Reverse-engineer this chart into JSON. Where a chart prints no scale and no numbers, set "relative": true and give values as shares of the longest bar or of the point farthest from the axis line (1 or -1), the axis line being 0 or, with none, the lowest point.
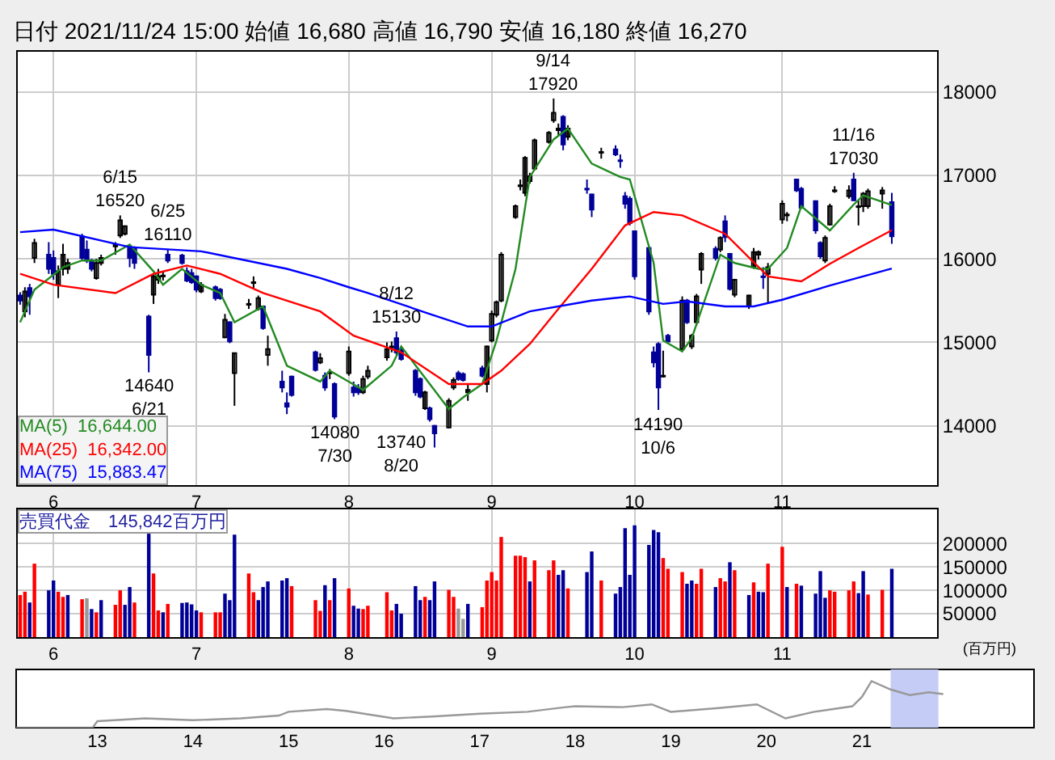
{
  "chart_data": [
    {
      "type": "candlestick",
      "title": "日付 2021/11/24 15:00 始値 16,680 高値 16,790 安値 16,180 終値 16,270",
      "x": [
        "2021-05-25",
        "2021-05-26",
        "2021-05-27",
        "2021-05-28",
        "2021-05-31",
        "2021-06-01",
        "2021-06-02",
        "2021-06-03",
        "2021-06-04",
        "2021-06-07",
        "2021-06-08",
        "2021-06-09",
        "2021-06-10",
        "2021-06-11",
        "2021-06-14",
        "2021-06-15",
        "2021-06-16",
        "2021-06-17",
        "2021-06-18",
        "2021-06-21",
        "2021-06-22",
        "2021-06-23",
        "2021-06-24",
        "2021-06-25",
        "2021-06-28",
        "2021-06-29",
        "2021-06-30",
        "2021-07-01",
        "2021-07-02",
        "2021-07-05",
        "2021-07-06",
        "2021-07-07",
        "2021-07-08",
        "2021-07-09",
        "2021-07-12",
        "2021-07-13",
        "2021-07-14",
        "2021-07-15",
        "2021-07-16",
        "2021-07-19",
        "2021-07-20",
        "2021-07-21",
        "2021-07-26",
        "2021-07-27",
        "2021-07-28",
        "2021-07-29",
        "2021-07-30",
        "2021-08-02",
        "2021-08-03",
        "2021-08-04",
        "2021-08-05",
        "2021-08-06",
        "2021-08-10",
        "2021-08-11",
        "2021-08-12",
        "2021-08-13",
        "2021-08-16",
        "2021-08-17",
        "2021-08-18",
        "2021-08-19",
        "2021-08-20",
        "2021-08-23",
        "2021-08-24",
        "2021-08-25",
        "2021-08-26",
        "2021-08-27",
        "2021-08-30",
        "2021-08-31",
        "2021-09-01",
        "2021-09-02",
        "2021-09-03",
        "2021-09-06",
        "2021-09-07",
        "2021-09-08",
        "2021-09-09",
        "2021-09-10",
        "2021-09-13",
        "2021-09-14",
        "2021-09-15",
        "2021-09-16",
        "2021-09-17",
        "2021-09-21",
        "2021-09-22",
        "2021-09-24",
        "2021-09-27",
        "2021-09-28",
        "2021-09-29",
        "2021-09-30",
        "2021-10-01",
        "2021-10-04",
        "2021-10-05",
        "2021-10-06",
        "2021-10-07",
        "2021-10-08",
        "2021-10-11",
        "2021-10-12",
        "2021-10-13",
        "2021-10-14",
        "2021-10-15",
        "2021-10-18",
        "2021-10-19",
        "2021-10-20",
        "2021-10-21",
        "2021-10-22",
        "2021-10-25",
        "2021-10-26",
        "2021-10-27",
        "2021-10-28",
        "2021-10-29",
        "2021-11-01",
        "2021-11-02",
        "2021-11-04",
        "2021-11-05",
        "2021-11-08",
        "2021-11-09",
        "2021-11-10",
        "2021-11-11",
        "2021-11-12",
        "2021-11-15",
        "2021-11-16",
        "2021-11-17",
        "2021-11-18",
        "2021-11-19",
        "2021-11-22",
        "2021-11-24"
      ],
      "ohlc": [
        [
          15560,
          15600,
          15450,
          15500
        ],
        [
          15370,
          15660,
          15300,
          15610
        ],
        [
          15650,
          15700,
          15330,
          15550
        ],
        [
          16010,
          16240,
          15950,
          16190
        ],
        [
          16050,
          16200,
          15820,
          15880
        ],
        [
          16010,
          16100,
          15750,
          15820
        ],
        [
          15690,
          15920,
          15530,
          15850
        ],
        [
          15880,
          16180,
          15800,
          16050
        ],
        [
          15880,
          16000,
          15820,
          15950
        ],
        [
          16270,
          16300,
          15990,
          16010
        ],
        [
          16110,
          16220,
          15950,
          15980
        ],
        [
          15980,
          16000,
          15850,
          15880
        ],
        [
          15770,
          16000,
          15750,
          15950
        ],
        [
          15950,
          16050,
          15920,
          16010
        ],
        [
          16150,
          16200,
          16050,
          16170
        ],
        [
          16280,
          16520,
          16250,
          16460
        ],
        [
          16300,
          16400,
          16280,
          16390
        ],
        [
          16150,
          16170,
          15900,
          16010
        ],
        [
          16130,
          16150,
          15880,
          15950
        ],
        [
          15310,
          15330,
          14640,
          14850
        ],
        [
          15570,
          15820,
          15460,
          15790
        ],
        [
          15750,
          15880,
          15700,
          15790
        ],
        [
          15790,
          15850,
          15740,
          15800
        ],
        [
          16050,
          16110,
          15950,
          15980
        ],
        [
          16040,
          16060,
          15930,
          15950
        ],
        [
          15850,
          15900,
          15720,
          15740
        ],
        [
          15830,
          15880,
          15700,
          15720
        ],
        [
          15790,
          15800,
          15600,
          15630
        ],
        [
          15610,
          15720,
          15590,
          15690
        ],
        [
          15660,
          15680,
          15500,
          15530
        ],
        [
          15630,
          15650,
          15510,
          15530
        ],
        [
          15060,
          15340,
          15050,
          15270
        ],
        [
          15240,
          15250,
          14990,
          15010
        ],
        [
          14630,
          14870,
          14240,
          14870
        ],
        [
          15450,
          15520,
          15400,
          15460
        ],
        [
          15710,
          15790,
          15650,
          15720
        ],
        [
          15400,
          15560,
          15380,
          15530
        ],
        [
          15430,
          15440,
          15150,
          15170
        ],
        [
          14850,
          15080,
          14720,
          14920
        ],
        [
          14530,
          14660,
          14400,
          14460
        ],
        [
          14270,
          14400,
          14140,
          14230
        ],
        [
          14590,
          14600,
          14350,
          14370
        ],
        [
          14880,
          14900,
          14650,
          14670
        ],
        [
          14760,
          14870,
          14740,
          14810
        ],
        [
          14600,
          14640,
          14420,
          14460
        ],
        [
          14630,
          14680,
          14560,
          14640
        ],
        [
          14500,
          14520,
          14080,
          14110
        ],
        [
          14630,
          14950,
          14600,
          14890
        ],
        [
          14460,
          14530,
          14350,
          14400
        ],
        [
          14450,
          14500,
          14370,
          14400
        ],
        [
          14400,
          14600,
          14380,
          14560
        ],
        [
          14590,
          14720,
          14560,
          14660
        ],
        [
          14820,
          15000,
          14780,
          14920
        ],
        [
          14940,
          15010,
          14880,
          14950
        ],
        [
          15050,
          15130,
          14850,
          14880
        ],
        [
          14920,
          14950,
          14780,
          14800
        ],
        [
          14660,
          14680,
          14360,
          14400
        ],
        [
          14560,
          14580,
          14330,
          14350
        ],
        [
          14210,
          14420,
          14190,
          14400
        ],
        [
          14210,
          14230,
          14050,
          14080
        ],
        [
          14000,
          14010,
          13740,
          13910
        ],
        [
          13980,
          14330,
          13970,
          14300
        ],
        [
          14460,
          14580,
          14430,
          14550
        ],
        [
          14630,
          14660,
          14540,
          14560
        ],
        [
          14620,
          14640,
          14530,
          14550
        ],
        [
          14400,
          14500,
          14300,
          14430
        ],
        [
          14690,
          14720,
          14580,
          14600
        ],
        [
          14500,
          14960,
          14400,
          14950
        ],
        [
          15020,
          15380,
          15000,
          15340
        ],
        [
          15330,
          15500,
          15300,
          15480
        ],
        [
          15500,
          16080,
          15480,
          16050
        ],
        [
          16500,
          16650,
          16480,
          16630
        ],
        [
          16870,
          16950,
          16820,
          16880
        ],
        [
          16790,
          17230,
          16750,
          17210
        ],
        [
          16930,
          17030,
          16900,
          16990
        ],
        [
          17080,
          17440,
          17060,
          17420
        ],
        [
          17400,
          17530,
          17380,
          17510
        ],
        [
          17660,
          17920,
          17630,
          17750
        ],
        [
          17540,
          17620,
          17480,
          17560
        ],
        [
          17700,
          17720,
          17300,
          17370
        ],
        [
          17460,
          17600,
          17420,
          17560
        ],
        [
          16840,
          16950,
          16780,
          16830
        ],
        [
          16770,
          16780,
          16500,
          16590
        ],
        [
          17270,
          17330,
          17200,
          17280
        ],
        [
          17310,
          17360,
          17230,
          17250
        ],
        [
          17180,
          17250,
          17090,
          17170
        ],
        [
          16750,
          16800,
          16600,
          16660
        ],
        [
          16720,
          16750,
          16400,
          16430
        ],
        [
          16330,
          16340,
          15750,
          15790
        ],
        [
          16130,
          16150,
          15330,
          15370
        ],
        [
          14880,
          14950,
          14700,
          14760
        ],
        [
          14980,
          15000,
          14190,
          14460
        ],
        [
          14590,
          14900,
          14580,
          14600
        ],
        [
          15080,
          15100,
          15000,
          15010
        ],
        [
          14920,
          15550,
          14900,
          15500
        ],
        [
          15500,
          15520,
          15220,
          15240
        ],
        [
          14950,
          15100,
          14920,
          15080
        ],
        [
          15240,
          15580,
          15200,
          15550
        ],
        [
          15870,
          16080,
          15700,
          16060
        ],
        [
          16120,
          16150,
          15980,
          16010
        ],
        [
          16110,
          16270,
          16080,
          16250
        ],
        [
          16450,
          16520,
          16200,
          16260
        ],
        [
          16060,
          16070,
          15620,
          15640
        ],
        [
          15570,
          15760,
          15540,
          15750
        ],
        [
          15430,
          15570,
          15400,
          15560
        ],
        [
          15900,
          16130,
          15880,
          16080
        ],
        [
          16050,
          16100,
          15990,
          16080
        ],
        [
          15790,
          15900,
          15640,
          15780
        ],
        [
          15820,
          15950,
          15460,
          15900
        ],
        [
          16470,
          16700,
          16420,
          16660
        ],
        [
          16520,
          16560,
          16450,
          16530
        ],
        [
          16950,
          16960,
          16800,
          16820
        ],
        [
          16840,
          16860,
          16600,
          16610
        ],
        [
          16690,
          16700,
          16300,
          16340
        ],
        [
          16190,
          16210,
          16000,
          16030
        ],
        [
          15980,
          16280,
          15950,
          16250
        ],
        [
          16410,
          16660,
          16400,
          16630
        ],
        [
          16810,
          16870,
          16790,
          16820
        ],
        [
          16750,
          16880,
          16720,
          16820
        ],
        [
          16950,
          17030,
          16690,
          16700
        ],
        [
          16620,
          16700,
          16400,
          16630
        ],
        [
          16630,
          16800,
          16560,
          16780
        ],
        [
          16630,
          16840,
          16600,
          16810
        ],
        [
          16780,
          16860,
          16600,
          16820
        ],
        [
          16680,
          16790,
          16180,
          16270
        ]
      ],
      "series": [
        {
          "name": "MA(5)  16,644.00",
          "type": "line",
          "color": "#228b22",
          "x": [
            "2021-05-25",
            "2021-05-28",
            "2021-06-03",
            "2021-06-07",
            "2021-06-11",
            "2021-06-17",
            "2021-06-22",
            "2021-06-24",
            "2021-06-28",
            "2021-07-02",
            "2021-07-06",
            "2021-07-09",
            "2021-07-15",
            "2021-07-20",
            "2021-07-27",
            "2021-07-29",
            "2021-08-05",
            "2021-08-11",
            "2021-08-13",
            "2021-08-19",
            "2021-08-23",
            "2021-08-26",
            "2021-08-30",
            "2021-09-02",
            "2021-09-06",
            "2021-09-09",
            "2021-09-14",
            "2021-09-17",
            "2021-09-22",
            "2021-09-28",
            "2021-09-30",
            "2021-10-05",
            "2021-10-07",
            "2021-10-11",
            "2021-10-13",
            "2021-10-19",
            "2021-10-22",
            "2021-10-27",
            "2021-10-29",
            "2021-11-02",
            "2021-11-05",
            "2021-11-11",
            "2021-11-16",
            "2021-11-18",
            "2021-11-24"
          ],
          "values": [
            15240,
            15630,
            15900,
            15980,
            15980,
            16170,
            15850,
            15690,
            15880,
            15690,
            15590,
            15240,
            15430,
            14720,
            14530,
            14660,
            14430,
            14720,
            14950,
            14500,
            14200,
            14340,
            14500,
            15020,
            15880,
            16980,
            17430,
            17560,
            17140,
            16980,
            16950,
            15950,
            15020,
            14890,
            15050,
            16050,
            15950,
            15880,
            15880,
            16130,
            16630,
            16340,
            16650,
            16760,
            16644
          ]
        },
        {
          "name": "MA(25)  16,342.00",
          "type": "line",
          "color": "#ff0000",
          "x": [
            "2021-05-25",
            "2021-06-01",
            "2021-06-14",
            "2021-06-22",
            "2021-06-29",
            "2021-07-06",
            "2021-07-15",
            "2021-07-27",
            "2021-08-03",
            "2021-08-13",
            "2021-08-23",
            "2021-08-30",
            "2021-09-03",
            "2021-09-09",
            "2021-09-15",
            "2021-09-22",
            "2021-09-29",
            "2021-10-05",
            "2021-10-11",
            "2021-10-20",
            "2021-10-29",
            "2021-11-05",
            "2021-11-11",
            "2021-11-17",
            "2021-11-24"
          ],
          "values": [
            15820,
            15690,
            15590,
            15820,
            15920,
            15820,
            15590,
            15370,
            15080,
            14880,
            14500,
            14500,
            14660,
            14980,
            15400,
            15880,
            16400,
            16560,
            16520,
            16300,
            15790,
            15730,
            15940,
            16130,
            16342
          ]
        },
        {
          "name": "MA(75)  15,883.47",
          "type": "line",
          "color": "#0000ff",
          "x": [
            "2021-05-25",
            "2021-06-01",
            "2021-06-17",
            "2021-07-02",
            "2021-07-20",
            "2021-07-27",
            "2021-08-02",
            "2021-08-06",
            "2021-08-19",
            "2021-08-27",
            "2021-09-01",
            "2021-09-09",
            "2021-09-22",
            "2021-09-30",
            "2021-10-07",
            "2021-10-12",
            "2021-10-20",
            "2021-10-26",
            "2021-11-01",
            "2021-11-11",
            "2021-11-24"
          ],
          "values": [
            16320,
            16350,
            16140,
            16090,
            15880,
            15770,
            15660,
            15590,
            15340,
            15190,
            15190,
            15370,
            15500,
            15550,
            15460,
            15490,
            15430,
            15430,
            15510,
            15680,
            15883.47
          ]
        }
      ],
      "annotations": [
        {
          "text": "6/15\n16520",
          "x": "2021-06-15",
          "y": 16520
        },
        {
          "text": "14640\n6/21",
          "x": "2021-06-21",
          "y": 14640
        },
        {
          "text": "6/25\n16110",
          "x": "2021-06-25",
          "y": 16110
        },
        {
          "text": "14080\n7/30",
          "x": "2021-07-30",
          "y": 14080
        },
        {
          "text": "8/12\n15130",
          "x": "2021-08-12",
          "y": 15130
        },
        {
          "text": "13740\n8/20",
          "x": "2021-08-20",
          "y": 13740
        },
        {
          "text": "9/14\n17920",
          "x": "2021-09-14",
          "y": 17920
        },
        {
          "text": "14190\n10/6",
          "x": "2021-10-06",
          "y": 14190
        },
        {
          "text": "11/16\n17030",
          "x": "2021-11-16",
          "y": 17030
        }
      ],
      "xlim": [
        "2021-05-24T12:00",
        "2021-12-03T12:00"
      ],
      "xticks": [
        {
          "value": "2021-06-01",
          "label": "6"
        },
        {
          "value": "2021-07-01",
          "label": "7"
        },
        {
          "value": "2021-08-02",
          "label": "8"
        },
        {
          "value": "2021-09-01",
          "label": "9"
        },
        {
          "value": "2021-10-01",
          "label": "10"
        },
        {
          "value": "2021-11-01",
          "label": "11"
        }
      ],
      "ylim": [
        13290,
        18480
      ],
      "yticks": [
        14000,
        15000,
        16000,
        17000,
        18000
      ],
      "grid": true
    },
    {
      "type": "bar",
      "ylabel": "(百万円)",
      "annotations": [
        "売買代金　145,842百万円"
      ],
      "x": [
        "2021-05-25",
        "2021-05-26",
        "2021-05-27",
        "2021-05-28",
        "2021-05-31",
        "2021-06-01",
        "2021-06-02",
        "2021-06-03",
        "2021-06-04",
        "2021-06-07",
        "2021-06-08",
        "2021-06-09",
        "2021-06-10",
        "2021-06-11",
        "2021-06-14",
        "2021-06-15",
        "2021-06-16",
        "2021-06-17",
        "2021-06-18",
        "2021-06-21",
        "2021-06-22",
        "2021-06-23",
        "2021-06-24",
        "2021-06-25",
        "2021-06-28",
        "2021-06-29",
        "2021-06-30",
        "2021-07-01",
        "2021-07-02",
        "2021-07-05",
        "2021-07-06",
        "2021-07-07",
        "2021-07-08",
        "2021-07-09",
        "2021-07-12",
        "2021-07-13",
        "2021-07-14",
        "2021-07-15",
        "2021-07-16",
        "2021-07-19",
        "2021-07-20",
        "2021-07-21",
        "2021-07-26",
        "2021-07-27",
        "2021-07-28",
        "2021-07-29",
        "2021-07-30",
        "2021-08-02",
        "2021-08-03",
        "2021-08-04",
        "2021-08-05",
        "2021-08-06",
        "2021-08-10",
        "2021-08-11",
        "2021-08-12",
        "2021-08-13",
        "2021-08-16",
        "2021-08-17",
        "2021-08-18",
        "2021-08-19",
        "2021-08-20",
        "2021-08-23",
        "2021-08-24",
        "2021-08-25",
        "2021-08-26",
        "2021-08-27",
        "2021-08-30",
        "2021-08-31",
        "2021-09-01",
        "2021-09-02",
        "2021-09-03",
        "2021-09-06",
        "2021-09-07",
        "2021-09-08",
        "2021-09-09",
        "2021-09-10",
        "2021-09-13",
        "2021-09-14",
        "2021-09-15",
        "2021-09-16",
        "2021-09-17",
        "2021-09-21",
        "2021-09-22",
        "2021-09-24",
        "2021-09-27",
        "2021-09-28",
        "2021-09-29",
        "2021-09-30",
        "2021-10-01",
        "2021-10-04",
        "2021-10-05",
        "2021-10-06",
        "2021-10-07",
        "2021-10-08",
        "2021-10-11",
        "2021-10-12",
        "2021-10-13",
        "2021-10-14",
        "2021-10-15",
        "2021-10-18",
        "2021-10-19",
        "2021-10-20",
        "2021-10-21",
        "2021-10-22",
        "2021-10-25",
        "2021-10-26",
        "2021-10-27",
        "2021-10-28",
        "2021-10-29",
        "2021-11-01",
        "2021-11-02",
        "2021-11-04",
        "2021-11-05",
        "2021-11-08",
        "2021-11-09",
        "2021-11-10",
        "2021-11-11",
        "2021-11-12",
        "2021-11-15",
        "2021-11-16",
        "2021-11-17",
        "2021-11-18",
        "2021-11-19",
        "2021-11-22",
        "2021-11-24"
      ],
      "values": [
        90000,
        97000,
        74000,
        157000,
        100000,
        121000,
        97000,
        86000,
        90000,
        81000,
        83000,
        60000,
        53000,
        79000,
        69000,
        100000,
        69000,
        107000,
        74000,
        221000,
        136000,
        57000,
        53000,
        71000,
        73000,
        74000,
        70000,
        57000,
        53000,
        53000,
        53000,
        93000,
        79000,
        219000,
        136000,
        96000,
        79000,
        107000,
        119000,
        121000,
        126000,
        109000,
        79000,
        56000,
        111000,
        79000,
        126000,
        104000,
        67000,
        61000,
        60000,
        67000,
        96000,
        57000,
        71000,
        50000,
        109000,
        79000,
        86000,
        79000,
        119000,
        101000,
        86000,
        61000,
        39000,
        71000,
        64000,
        121000,
        139000,
        121000,
        214000,
        174000,
        174000,
        171000,
        119000,
        164000,
        143000,
        164000,
        133000,
        143000,
        104000,
        139000,
        183000,
        121000,
        93000,
        107000,
        233000,
        133000,
        239000,
        197000,
        229000,
        224000,
        169000,
        146000,
        139000,
        114000,
        121000,
        114000,
        146000,
        107000,
        126000,
        119000,
        160000,
        143000,
        90000,
        117000,
        97000,
        96000,
        157000,
        193000,
        107000,
        114000,
        110000,
        93000,
        141000,
        84000,
        100000,
        97000,
        100000,
        119000,
        94000,
        141000,
        91000,
        101000,
        146000
      ],
      "colors": [
        "#ff0000",
        "#ff0000",
        "#000099",
        "#ff0000",
        "#000099",
        "#000099",
        "#ff0000",
        "#ff0000",
        "#000099",
        "#ff0000",
        "#999999",
        "#000099",
        "#ff0000",
        "#000099",
        "#ff0000",
        "#ff0000",
        "#000099",
        "#000099",
        "#ff0000",
        "#000099",
        "#ff0000",
        "#ff0000",
        "#000099",
        "#ff0000",
        "#000099",
        "#000099",
        "#000099",
        "#000099",
        "#ff0000",
        "#ff0000",
        "#ff0000",
        "#000099",
        "#000099",
        "#000099",
        "#ff0000",
        "#ff0000",
        "#000099",
        "#000099",
        "#000099",
        "#000099",
        "#000099",
        "#ff0000",
        "#ff0000",
        "#ff0000",
        "#000099",
        "#ff0000",
        "#000099",
        "#ff0000",
        "#000099",
        "#000099",
        "#ff0000",
        "#ff0000",
        "#ff0000",
        "#ff0000",
        "#000099",
        "#000099",
        "#000099",
        "#000099",
        "#ff0000",
        "#000099",
        "#000099",
        "#ff0000",
        "#ff0000",
        "#999999",
        "#999999",
        "#000099",
        "#ff0000",
        "#ff0000",
        "#ff0000",
        "#ff0000",
        "#ff0000",
        "#ff0000",
        "#ff0000",
        "#ff0000",
        "#000099",
        "#ff0000",
        "#ff0000",
        "#ff0000",
        "#000099",
        "#000099",
        "#ff0000",
        "#000099",
        "#000099",
        "#ff0000",
        "#000099",
        "#000099",
        "#000099",
        "#000099",
        "#000099",
        "#000099",
        "#000099",
        "#000099",
        "#ff0000",
        "#ff0000",
        "#ff0000",
        "#000099",
        "#000099",
        "#ff0000",
        "#ff0000",
        "#000099",
        "#ff0000",
        "#ff0000",
        "#000099",
        "#ff0000",
        "#000099",
        "#ff0000",
        "#000099",
        "#000099",
        "#ff0000",
        "#ff0000",
        "#000099",
        "#ff0000",
        "#000099",
        "#000099",
        "#000099",
        "#000099",
        "#ff0000",
        "#ff0000",
        "#ff0000",
        "#ff0000",
        "#000099",
        "#000099",
        "#ff0000",
        "#ff0000",
        "#000099"
      ],
      "xlim": [
        "2021-05-24T12:00",
        "2021-12-03T12:00"
      ],
      "xticks": [
        {
          "value": "2021-06-01",
          "label": "6"
        },
        {
          "value": "2021-07-01",
          "label": "7"
        },
        {
          "value": "2021-08-02",
          "label": "8"
        },
        {
          "value": "2021-09-01",
          "label": "9"
        },
        {
          "value": "2021-10-01",
          "label": "10"
        },
        {
          "value": "2021-11-01",
          "label": "11"
        }
      ],
      "ylim": [
        0,
        273000
      ],
      "yticks": [
        50000,
        100000,
        150000,
        200000
      ],
      "grid": true
    },
    {
      "type": "line",
      "relative": true,
      "color": "#999999",
      "x": [
        2012.15,
        2012.95,
        2013.0,
        2013.5,
        2014.0,
        2014.5,
        2014.9,
        2015.0,
        2015.4,
        2015.6,
        2016.1,
        2016.5,
        2017.0,
        2017.5,
        2017.9,
        2018.0,
        2018.5,
        2018.8,
        2019.0,
        2019.5,
        2019.9,
        2020.2,
        2020.5,
        2020.9,
        2021.0,
        2021.1,
        2021.3,
        2021.5,
        2021.7,
        2021.85
      ],
      "values": [
        0,
        0,
        0.14,
        0.2,
        0.16,
        0.2,
        0.26,
        0.34,
        0.4,
        0.36,
        0.2,
        0.24,
        0.3,
        0.34,
        0.44,
        0.46,
        0.44,
        0.5,
        0.34,
        0.42,
        0.5,
        0.2,
        0.34,
        0.46,
        0.66,
        1.0,
        0.82,
        0.7,
        0.76,
        0.72
      ],
      "xlim": [
        2012.15,
        2022.8
      ],
      "xticks": [
        {
          "value": 2013,
          "label": "13"
        },
        {
          "value": 2014,
          "label": "14"
        },
        {
          "value": 2015,
          "label": "15"
        },
        {
          "value": 2016,
          "label": "16"
        },
        {
          "value": 2017,
          "label": "17"
        },
        {
          "value": 2018,
          "label": "18"
        },
        {
          "value": 2019,
          "label": "19"
        },
        {
          "value": 2020,
          "label": "20"
        },
        {
          "value": 2021,
          "label": "21"
        }
      ],
      "bands": [
        {
          "axis": "x",
          "from": 2021.3,
          "to": 2021.8,
          "color": "#c5cdf7"
        }
      ]
    }
  ]
}
